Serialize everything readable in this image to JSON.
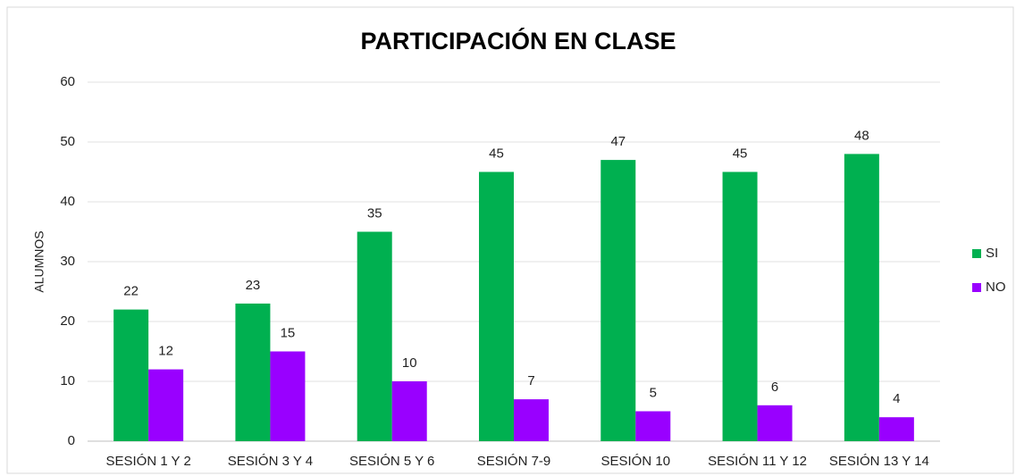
{
  "chart_data": {
    "type": "bar",
    "title": "PARTICIPACIÓN  EN CLASE",
    "y_label": "ALUMNOS",
    "categories": [
      "SESIÓN 1 Y 2",
      "SESIÓN 3 Y 4",
      "SESIÓN 5 Y 6",
      "SESIÓN 7-9",
      "SESIÓN 10",
      "SESIÓN 11 Y 12",
      "SESIÓN 13 Y 14"
    ],
    "series": [
      {
        "name": "SI",
        "color": "#00b050",
        "values": [
          22,
          23,
          35,
          45,
          47,
          45,
          48
        ]
      },
      {
        "name": "NO",
        "color": "#9900ff",
        "values": [
          12,
          15,
          10,
          7,
          5,
          6,
          4
        ]
      }
    ],
    "ylim": [
      0,
      60
    ],
    "yticks": [
      0,
      10,
      20,
      30,
      40,
      50,
      60
    ],
    "grid": true,
    "legend": "right"
  }
}
